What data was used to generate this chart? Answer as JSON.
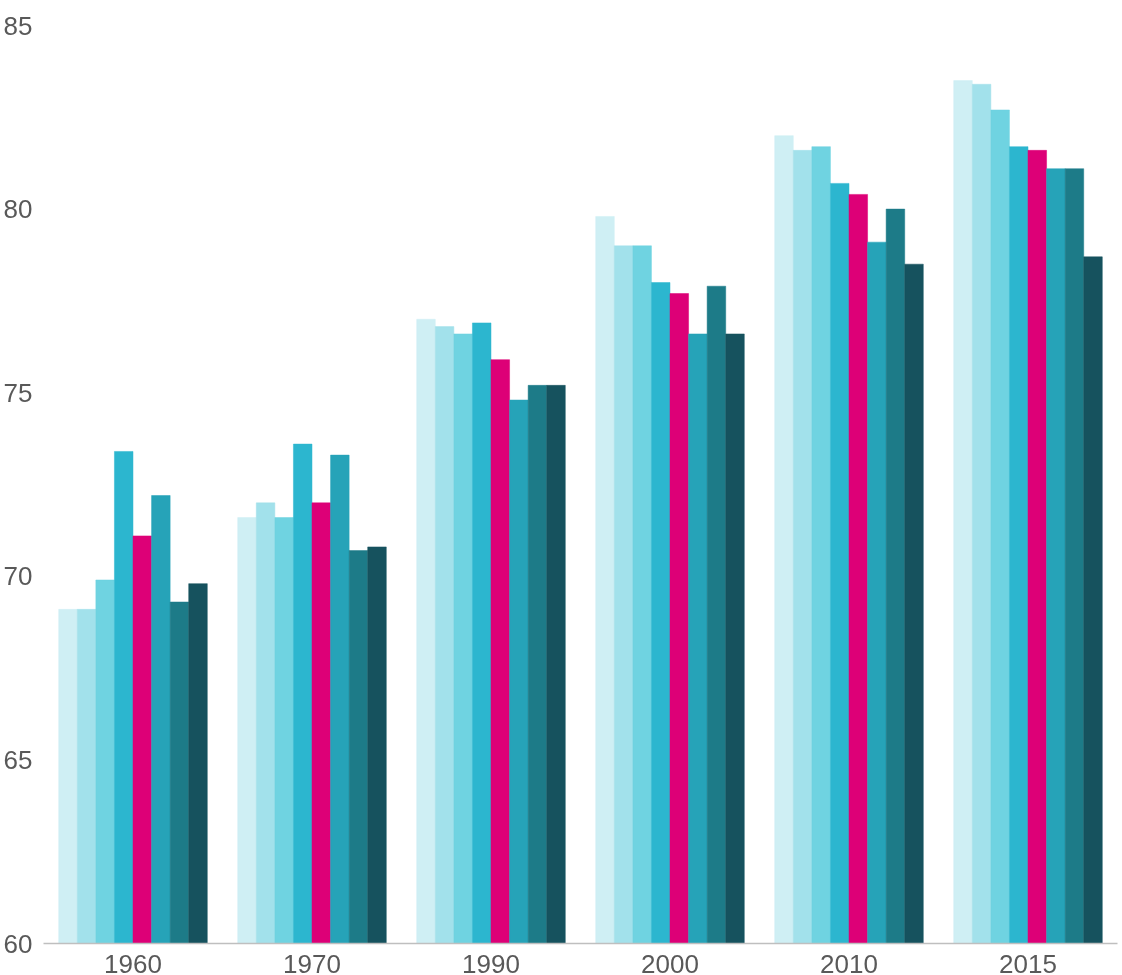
{
  "chart_data": {
    "type": "bar",
    "categories": [
      "1960",
      "1970",
      "1990",
      "2000",
      "2010",
      "2015"
    ],
    "series": [
      {
        "color": "#cfeff4",
        "values": [
          69.1,
          71.6,
          77.0,
          79.8,
          82.0,
          83.5
        ]
      },
      {
        "color": "#a2e1eb",
        "values": [
          69.1,
          72.0,
          76.8,
          79.0,
          81.6,
          83.4
        ]
      },
      {
        "color": "#6fd3e1",
        "values": [
          69.9,
          71.6,
          76.6,
          79.0,
          81.7,
          82.7
        ]
      },
      {
        "color": "#2cb6cf",
        "values": [
          73.4,
          73.6,
          76.9,
          78.0,
          80.7,
          81.7
        ]
      },
      {
        "color": "#dd0077",
        "values": [
          71.1,
          72.0,
          75.9,
          77.7,
          80.4,
          81.6
        ]
      },
      {
        "color": "#26a3b8",
        "values": [
          72.2,
          73.3,
          74.8,
          76.6,
          79.1,
          81.1
        ]
      },
      {
        "color": "#1d7b88",
        "values": [
          69.3,
          70.7,
          75.2,
          77.9,
          80.0,
          81.1
        ]
      },
      {
        "color": "#16525e",
        "values": [
          69.8,
          70.8,
          75.2,
          76.6,
          78.5,
          78.7
        ]
      }
    ],
    "ylim": [
      60,
      85
    ],
    "yticks": [
      60,
      65,
      70,
      75,
      80,
      85
    ],
    "grid": false
  }
}
